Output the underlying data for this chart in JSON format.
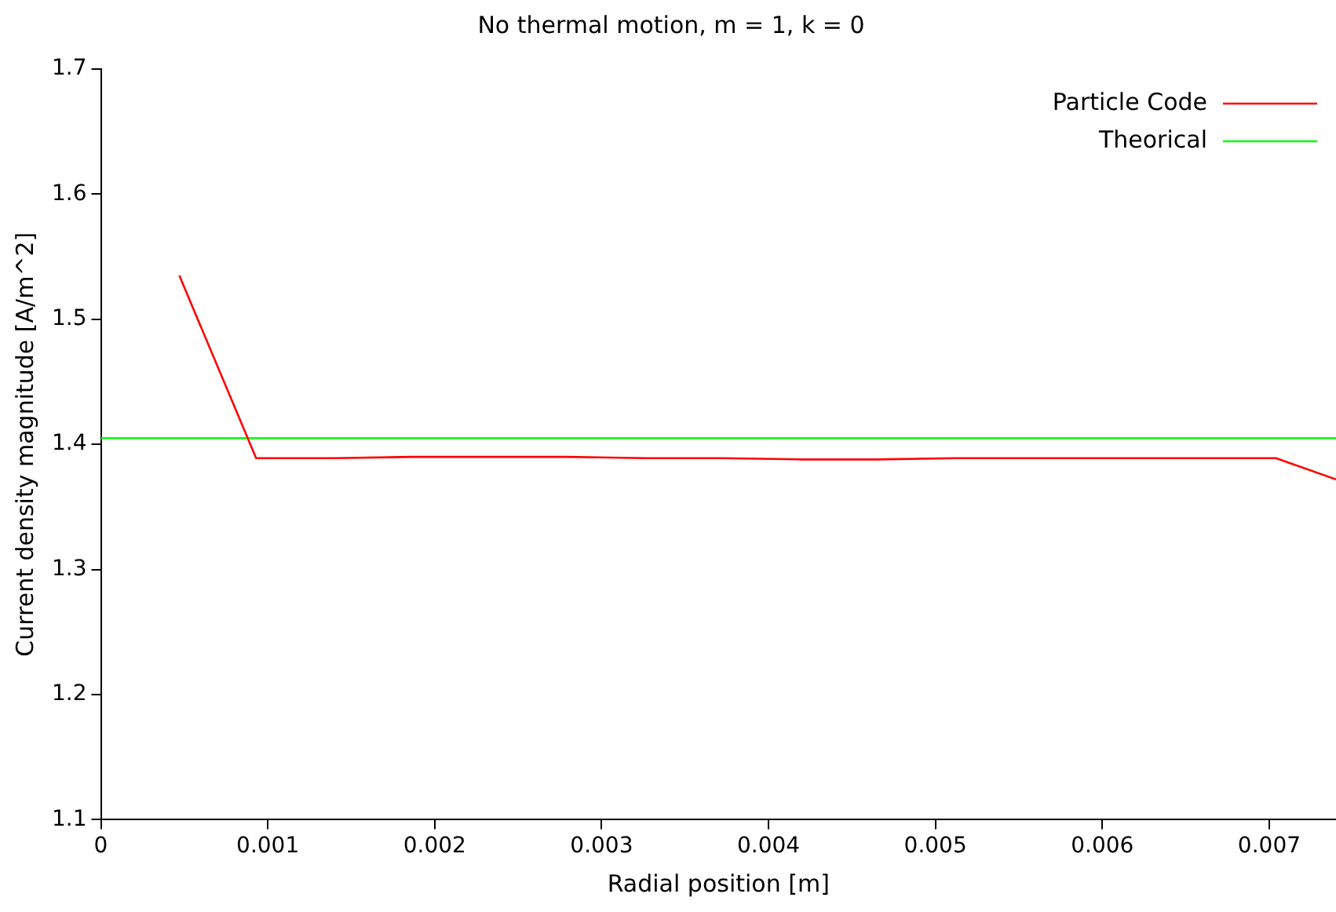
{
  "chart_data": {
    "type": "line",
    "title": "No thermal motion, m = 1, k = 0",
    "xlabel": "Radial position [m]",
    "ylabel": "Current density magnitude [A/m^2]",
    "xlim": [
      0,
      0.0074
    ],
    "xticks": [
      0,
      0.001,
      0.002,
      0.003,
      0.004,
      0.005,
      0.006,
      0.007
    ],
    "ylim": [
      1.1,
      1.7
    ],
    "yticks": [
      1.1,
      1.2,
      1.3,
      1.4,
      1.5,
      1.6,
      1.7
    ],
    "series": [
      {
        "name": "Particle Code",
        "color": "#ff0000",
        "x": [
          0.00047,
          0.00093,
          0.0014,
          0.00186,
          0.00233,
          0.00279,
          0.00326,
          0.00372,
          0.00419,
          0.00465,
          0.00512,
          0.00558,
          0.00605,
          0.00651,
          0.00704,
          0.0074
        ],
        "values": [
          1.535,
          1.389,
          1.389,
          1.39,
          1.39,
          1.39,
          1.389,
          1.389,
          1.388,
          1.388,
          1.389,
          1.389,
          1.389,
          1.389,
          1.389,
          1.372
        ]
      },
      {
        "name": "Theorical",
        "color": "#00ff00",
        "x": [
          0,
          0.0074
        ],
        "values": [
          1.405,
          1.405
        ]
      }
    ],
    "legend": "top right",
    "grid": false,
    "marker": "none",
    "line_style": "solid"
  }
}
